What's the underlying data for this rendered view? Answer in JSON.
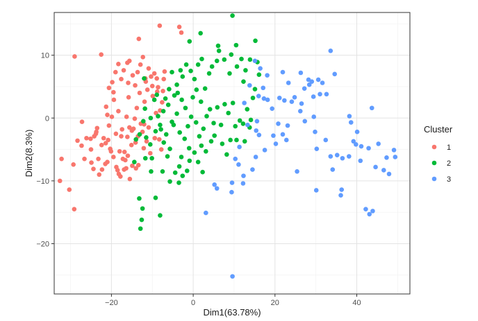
{
  "chart_data": {
    "type": "scatter",
    "xlabel": "Dim1(63.78%)",
    "ylabel": "Dim2(8.3%)",
    "xlim": [
      -34,
      53
    ],
    "ylim": [
      -28,
      16.8
    ],
    "xticks": [
      -20,
      0,
      20,
      40
    ],
    "yticks": [
      -20,
      -10,
      0,
      10
    ],
    "x_tick_labels": [
      "−20",
      "0",
      "20",
      "40"
    ],
    "y_tick_labels": [
      "−20",
      "−10",
      "0",
      "10"
    ],
    "grid": true,
    "legend": {
      "title": "Cluster",
      "placement": "right"
    },
    "series": [
      {
        "name": "1",
        "color": "#F8766D",
        "points": [
          [
            -29,
            9.8
          ],
          [
            -22.5,
            10.1
          ],
          [
            -13.3,
            12.6
          ],
          [
            -8.2,
            14.7
          ],
          [
            -3.4,
            14.5
          ],
          [
            -2.9,
            13.6
          ],
          [
            -32.2,
            -6.5
          ],
          [
            -32.6,
            -10
          ],
          [
            -30.3,
            -11.4
          ],
          [
            -29.1,
            -14.5
          ],
          [
            -29.3,
            -7.4
          ],
          [
            -28.3,
            -3.6
          ],
          [
            -27.3,
            -4.4
          ],
          [
            -27.2,
            -0.6
          ],
          [
            -26.6,
            -6.5
          ],
          [
            -26.1,
            -3.2
          ],
          [
            -25.1,
            -3.3
          ],
          [
            -24.9,
            -7.1
          ],
          [
            -24.4,
            -8.1
          ],
          [
            -24.2,
            -2.9
          ],
          [
            -23.8,
            -2.5
          ],
          [
            -23.7,
            -2.2
          ],
          [
            -23.5,
            -1.6
          ],
          [
            -23.2,
            -6.5
          ],
          [
            -22.4,
            -4.3
          ],
          [
            -22.3,
            -8.2
          ],
          [
            -21.9,
            -3.2
          ],
          [
            -21.5,
            -7.3
          ],
          [
            -21.4,
            -4
          ],
          [
            -21.3,
            1.8
          ],
          [
            -21,
            0.5
          ],
          [
            -20.8,
            -3.5
          ],
          [
            -20.6,
            -1.2
          ],
          [
            -20.3,
            -4.9
          ],
          [
            -20.1,
            -5.3
          ],
          [
            -19.9,
            0.2
          ],
          [
            -19.5,
            4.1
          ],
          [
            -19.4,
            2.9
          ],
          [
            -18.9,
            -2.5
          ],
          [
            -18.8,
            -7.8
          ],
          [
            -18.5,
            -8.3
          ],
          [
            -18.3,
            1.1
          ],
          [
            -18.2,
            -8.9
          ],
          [
            -18,
            -5.3
          ],
          [
            -17.8,
            -9.3
          ],
          [
            -17.6,
            -2.9
          ],
          [
            -17.4,
            -1.8
          ],
          [
            -16.9,
            -8.2
          ],
          [
            -16.8,
            -5.4
          ],
          [
            -16.6,
            -6.7
          ],
          [
            -16.4,
            -8
          ],
          [
            -16.3,
            0.2
          ],
          [
            -16.1,
            -3
          ],
          [
            -15.9,
            5.6
          ],
          [
            -15.8,
            3.3
          ],
          [
            -15.6,
            -1.5
          ],
          [
            -15.5,
            -9.7
          ],
          [
            -15.1,
            -4.3
          ],
          [
            -14.9,
            -7.6
          ],
          [
            -14.6,
            -1.7
          ],
          [
            -14.3,
            -0.1
          ],
          [
            -14.1,
            -3.9
          ],
          [
            -13.8,
            1.6
          ],
          [
            -13.5,
            -2.9
          ],
          [
            -13.4,
            -7.5
          ],
          [
            -13.1,
            4
          ],
          [
            -12.8,
            -0.9
          ],
          [
            -12.4,
            -2.2
          ],
          [
            -12.1,
            -4.8
          ],
          [
            -11.9,
            2.6
          ],
          [
            -11.7,
            6.3
          ],
          [
            -11.4,
            -3.7
          ],
          [
            -11.2,
            4.5
          ],
          [
            -10.9,
            -1.5
          ],
          [
            -10.5,
            -5.6
          ],
          [
            -10.3,
            6.6
          ],
          [
            -9.9,
            3.5
          ],
          [
            -9.4,
            -3.2
          ],
          [
            -9.1,
            0.8
          ],
          [
            -8.8,
            4.2
          ],
          [
            -8.6,
            4.9
          ],
          [
            -8.3,
            -3.4
          ],
          [
            -8.1,
            1.2
          ],
          [
            -7.8,
            -5
          ],
          [
            -7.6,
            2.5
          ],
          [
            -7.4,
            4.3
          ],
          [
            -7.2,
            6.2
          ],
          [
            -7,
            7.4
          ],
          [
            -20.6,
            4.8
          ],
          [
            -19.8,
            5.7
          ],
          [
            -19,
            7.3
          ],
          [
            -18.3,
            8.6
          ],
          [
            -17.6,
            6.2
          ],
          [
            -17,
            7.6
          ],
          [
            -16.1,
            8.8
          ],
          [
            -15.6,
            9.1
          ],
          [
            -14.8,
            6.8
          ],
          [
            -14.2,
            5.2
          ],
          [
            -13.6,
            7.3
          ],
          [
            -12.9,
            8.5
          ],
          [
            -12.3,
            9.7
          ],
          [
            -11.6,
            5.8
          ],
          [
            -10.9,
            7.9
          ],
          [
            -10,
            5.1
          ],
          [
            -9.5,
            7.1
          ],
          [
            -8.9,
            6.3
          ],
          [
            -15,
            -2
          ],
          [
            -16,
            -6
          ],
          [
            -14,
            -8
          ],
          [
            -21,
            -7
          ],
          [
            -25,
            -5
          ],
          [
            -23,
            -9
          ],
          [
            -19.5,
            -6.2
          ],
          [
            -17.2,
            -6.5
          ],
          [
            -12,
            -1
          ]
        ]
      },
      {
        "name": "2",
        "color": "#00BA38",
        "points": [
          [
            9.6,
            16.3
          ],
          [
            1.8,
            13.5
          ],
          [
            -0.9,
            12.2
          ],
          [
            6.1,
            11.5
          ],
          [
            10.5,
            11.6
          ],
          [
            15.2,
            12.3
          ],
          [
            -13.2,
            -12.8
          ],
          [
            -9.2,
            -12.7
          ],
          [
            -12.4,
            -14.4
          ],
          [
            -12.6,
            -16.2
          ],
          [
            -12.9,
            -17.6
          ],
          [
            -8.1,
            -15.5
          ],
          [
            -11.7,
            -6.4
          ],
          [
            -10.3,
            -8.5
          ],
          [
            -10.1,
            -6.4
          ],
          [
            -10.5,
            -4.2
          ],
          [
            -7.5,
            -8.5
          ],
          [
            -5.7,
            -10.1
          ],
          [
            -4.4,
            -8.7
          ],
          [
            -3.5,
            -10.3
          ],
          [
            -3.4,
            -7.7
          ],
          [
            -2.9,
            -6.2
          ],
          [
            -2.6,
            -9.2
          ],
          [
            -1.5,
            -8.4
          ],
          [
            -0.9,
            -6.8
          ],
          [
            1.2,
            -7
          ],
          [
            2.3,
            -8.6
          ],
          [
            3.1,
            -5.3
          ],
          [
            4.4,
            -3.7
          ],
          [
            5.2,
            -2.8
          ],
          [
            7.1,
            -4.1
          ],
          [
            8.2,
            -5.8
          ],
          [
            9.1,
            -3.5
          ],
          [
            10.6,
            -3.5
          ],
          [
            11.4,
            -0.4
          ],
          [
            12.6,
            -3.7
          ],
          [
            12.2,
            -0.9
          ],
          [
            13.8,
            -1.5
          ],
          [
            14.1,
            -0.3
          ],
          [
            13.2,
            1.4
          ],
          [
            14.6,
            3.2
          ],
          [
            15.1,
            4.6
          ],
          [
            16.1,
            6.9
          ],
          [
            15.7,
            8.9
          ],
          [
            13.9,
            9.3
          ],
          [
            12.8,
            7.6
          ],
          [
            12.3,
            5.8
          ],
          [
            11.8,
            9.4
          ],
          [
            10.7,
            8.2
          ],
          [
            9.3,
            10.1
          ],
          [
            8.9,
            7.1
          ],
          [
            7.6,
            9.3
          ],
          [
            6.3,
            10.7
          ],
          [
            5.8,
            9.1
          ],
          [
            4.6,
            8.2
          ],
          [
            3.9,
            7.1
          ],
          [
            2.1,
            9.4
          ],
          [
            1.2,
            8.5
          ],
          [
            0.3,
            6.2
          ],
          [
            -0.6,
            7.5
          ],
          [
            -1.7,
            8.5
          ],
          [
            -2.6,
            6.6
          ],
          [
            -3.1,
            7.6
          ],
          [
            -4,
            5.3
          ],
          [
            -5.2,
            7.3
          ],
          [
            -4.6,
            3.6
          ],
          [
            -5.9,
            4.6
          ],
          [
            -6.8,
            3.1
          ],
          [
            -7.3,
            1.1
          ],
          [
            -8.1,
            -1.1
          ],
          [
            -9.2,
            -2.1
          ],
          [
            -10.4,
            0
          ],
          [
            -11.5,
            -3.1
          ],
          [
            -12.2,
            -0.5
          ],
          [
            -13.1,
            -2.6
          ],
          [
            -11.8,
            1.5
          ],
          [
            -9.5,
            2.9
          ],
          [
            -8.6,
            0.3
          ],
          [
            -7.9,
            -1.8
          ],
          [
            -6.6,
            -2.6
          ],
          [
            -5.7,
            -4.9
          ],
          [
            -4.8,
            -1.1
          ],
          [
            -4,
            0.7
          ],
          [
            -3.3,
            -2.3
          ],
          [
            -2.1,
            -3.3
          ],
          [
            -1.3,
            -1.3
          ],
          [
            -0.5,
            0.2
          ],
          [
            0.7,
            -0.7
          ],
          [
            1.5,
            -2.9
          ],
          [
            2.5,
            -1.7
          ],
          [
            3.3,
            0.3
          ],
          [
            4.1,
            1.4
          ],
          [
            5,
            -0.8
          ],
          [
            5.9,
            1.7
          ],
          [
            6.8,
            -1.1
          ],
          [
            7.7,
            2.2
          ],
          [
            8.6,
            0.8
          ],
          [
            9.7,
            2.4
          ],
          [
            10.3,
            -1.3
          ],
          [
            -1.9,
            1.6
          ],
          [
            -2.8,
            2.9
          ],
          [
            -3.8,
            4
          ],
          [
            -0.1,
            3.3
          ],
          [
            0.8,
            4.5
          ],
          [
            1.9,
            2.6
          ],
          [
            2.9,
            4.7
          ],
          [
            -6.1,
            2.1
          ],
          [
            -5.2,
            -0.6
          ],
          [
            -8.9,
            3.7
          ],
          [
            -7.2,
            -3.9
          ],
          [
            -6.3,
            -6.1
          ],
          [
            -1,
            -4.8
          ],
          [
            0.3,
            -5.5
          ],
          [
            2,
            -4.4
          ],
          [
            -12,
            6.3
          ],
          [
            -14,
            -3.4
          ],
          [
            -14.4,
            -7
          ]
        ]
      },
      {
        "name": "3",
        "color": "#619CFF",
        "points": [
          [
            9.6,
            -25.2
          ],
          [
            3.1,
            -15.1
          ],
          [
            5.8,
            -11.2
          ],
          [
            5.2,
            -10.6
          ],
          [
            9.4,
            -11.8
          ],
          [
            9.5,
            -10.3
          ],
          [
            10.3,
            -6.5
          ],
          [
            12.2,
            -10.4
          ],
          [
            12.3,
            -9.2
          ],
          [
            15.3,
            -6.2
          ],
          [
            16.1,
            -2.7
          ],
          [
            15.6,
            -0.5
          ],
          [
            16,
            3.5
          ],
          [
            17.3,
            3.1
          ],
          [
            17.1,
            4.8
          ],
          [
            18.2,
            2.9
          ],
          [
            19.3,
            1.5
          ],
          [
            20.8,
            -0.9
          ],
          [
            21.1,
            3.2
          ],
          [
            22.3,
            2.8
          ],
          [
            21.9,
            -2.6
          ],
          [
            23.1,
            -1.2
          ],
          [
            24.1,
            2.6
          ],
          [
            24.8,
            3.3
          ],
          [
            26.2,
            1.1
          ],
          [
            27.2,
            4.7
          ],
          [
            28.4,
            5.3
          ],
          [
            29,
            5.8
          ],
          [
            29.4,
            3.4
          ],
          [
            29.5,
            0.2
          ],
          [
            29.8,
            -2.2
          ],
          [
            30.2,
            -4.9
          ],
          [
            30.6,
            6.1
          ],
          [
            31.6,
            5.6
          ],
          [
            32.6,
            3.8
          ],
          [
            33.6,
            10.7
          ],
          [
            34.6,
            7
          ],
          [
            35.2,
            -5.9
          ],
          [
            36.5,
            -6.4
          ],
          [
            36.3,
            -11.4
          ],
          [
            38.1,
            -6.1
          ],
          [
            38.6,
            -0.7
          ],
          [
            39.2,
            -3.7
          ],
          [
            40.1,
            -2.2
          ],
          [
            41.1,
            -4.5
          ],
          [
            42.2,
            -14.5
          ],
          [
            43.1,
            -15.3
          ],
          [
            43.9,
            -14.8
          ],
          [
            44.6,
            -7.8
          ],
          [
            45.3,
            -4.1
          ],
          [
            46.6,
            -8.3
          ],
          [
            47.3,
            -6.3
          ],
          [
            47.9,
            -8.9
          ],
          [
            49.1,
            -5.1
          ],
          [
            49.4,
            -6.2
          ],
          [
            43.7,
            1.6
          ],
          [
            33.6,
            -6.1
          ],
          [
            34.1,
            -8.2
          ],
          [
            30.1,
            -11.5
          ],
          [
            25.4,
            -8.5
          ],
          [
            36.1,
            -12.3
          ],
          [
            23.3,
            5.6
          ],
          [
            21.9,
            7.3
          ],
          [
            26.3,
            7.2
          ],
          [
            28.2,
            6.1
          ],
          [
            31,
            3.8
          ],
          [
            18.1,
            6.8
          ],
          [
            16.4,
            7.9
          ],
          [
            15.1,
            9.1
          ],
          [
            11.3,
            -4.6
          ],
          [
            15.4,
            -2
          ],
          [
            19.6,
            -2.8
          ],
          [
            12.5,
            2.4
          ],
          [
            13.3,
            -1.1
          ],
          [
            17.5,
            -5.1
          ],
          [
            20.2,
            -4.1
          ],
          [
            22.8,
            -3.5
          ],
          [
            14.5,
            -8.2
          ],
          [
            11.1,
            -7.4
          ],
          [
            13.8,
            5.2
          ],
          [
            27.3,
            -0.5
          ],
          [
            26.5,
            2.3
          ],
          [
            32.4,
            -3.5
          ],
          [
            38.2,
            0.3
          ],
          [
            40.9,
            -6.8
          ],
          [
            42.9,
            -4.8
          ],
          [
            39.8,
            -4.2
          ]
        ]
      }
    ]
  }
}
